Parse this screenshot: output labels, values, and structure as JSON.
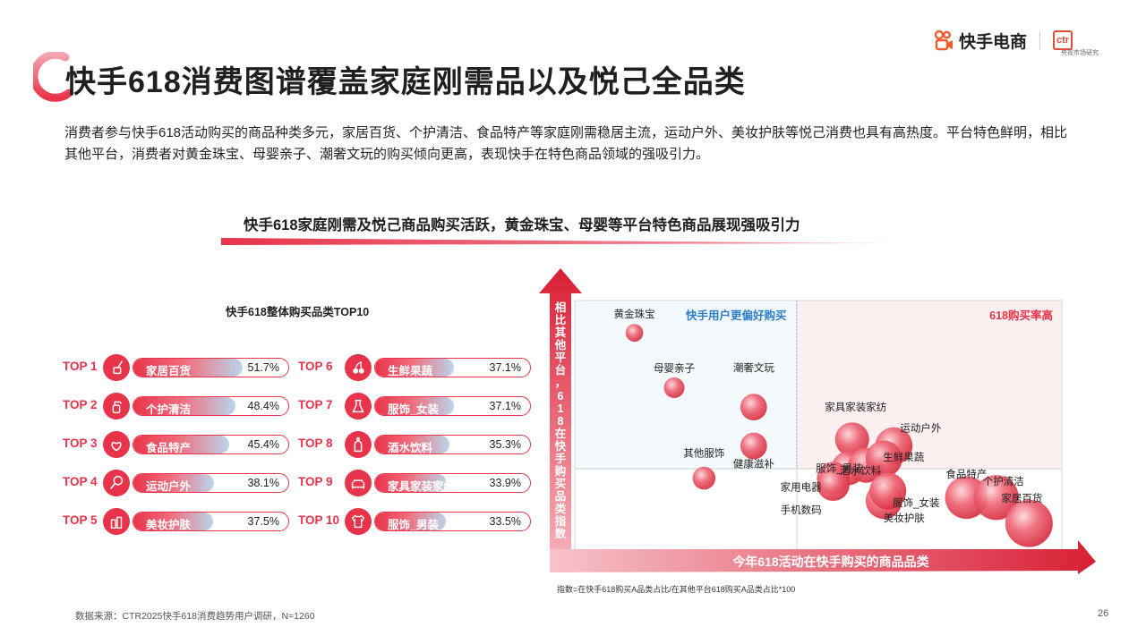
{
  "header": {
    "title": "快手618消费图谱覆盖家庭刚需品以及悦己全品类",
    "logo_text": "快手电商",
    "ctr_logo": "ctr",
    "ctr_caption": "央视市场研究"
  },
  "intro": "消费者参与快手618活动购买的商品种类多元，家居百货、个护清洁、食品特产等家庭刚需稳居主流，运动户外、美妆护肤等悦己消费也具有高热度。平台特色鲜明，相比其他平台，消费者对黄金珠宝、母婴亲子、潮奢文玩的购买倾向更高，表现快手在特色商品领域的强吸引力。",
  "section_title": "快手618家庭刚需及悦己商品购买活跃，黄金珠宝、母婴等平台特色商品展现强吸引力",
  "colors": {
    "accent": "#e8344a",
    "accent_dark": "#c8102e",
    "light_blue": "#b9d6ec"
  },
  "top10": {
    "title": "快手618整体购买品类TOP10",
    "items": [
      {
        "rank": "TOP 1",
        "label": "家居百货",
        "value": "51.7%",
        "icon": "broom-bucket-icon",
        "pct": 51.7
      },
      {
        "rank": "TOP 2",
        "label": "个护清洁",
        "value": "48.4%",
        "icon": "spray-bottle-icon",
        "pct": 48.4
      },
      {
        "rank": "TOP 3",
        "label": "食品特产",
        "value": "45.4%",
        "icon": "pretzel-icon",
        "pct": 45.4
      },
      {
        "rank": "TOP 4",
        "label": "运动户外",
        "value": "38.1%",
        "icon": "racket-icon",
        "pct": 38.1
      },
      {
        "rank": "TOP 5",
        "label": "美妆护肤",
        "value": "37.5%",
        "icon": "cosmetics-icon",
        "pct": 37.5
      },
      {
        "rank": "TOP 6",
        "label": "生鲜果蔬",
        "value": "37.1%",
        "icon": "cherry-icon",
        "pct": 37.1
      },
      {
        "rank": "TOP 7",
        "label": "服饰_女装",
        "value": "37.1%",
        "icon": "dress-icon",
        "pct": 37.1
      },
      {
        "rank": "TOP 8",
        "label": "酒水饮料",
        "value": "35.3%",
        "icon": "bottle-icon",
        "pct": 35.3
      },
      {
        "rank": "TOP 9",
        "label": "家具家装家纺",
        "value": "33.9%",
        "icon": "sofa-icon",
        "pct": 33.9
      },
      {
        "rank": "TOP 10",
        "label": "服饰_男装",
        "value": "33.5%",
        "icon": "shirt-icon",
        "pct": 33.5
      }
    ]
  },
  "chart_data": {
    "type": "scatter",
    "xlabel": "今年618活动在快手购买的商品品类",
    "ylabel": "相比其他平台，618在快手购买品类指数",
    "quadrant_labels": {
      "top_left": "快手用户更偏好购买",
      "top_right": "618购买率高"
    },
    "points": [
      {
        "name": "黄金珠宝",
        "x": 12,
        "y": 145
      },
      {
        "name": "母婴亲子",
        "x": 16,
        "y": 128
      },
      {
        "name": "潮奢文玩",
        "x": 24,
        "y": 122
      },
      {
        "name": "其他服饰",
        "x": 19,
        "y": 100
      },
      {
        "name": "健康滋补",
        "x": 24,
        "y": 110
      },
      {
        "name": "家具家装家纺",
        "x": 33.9,
        "y": 112
      },
      {
        "name": "服饰_男装",
        "x": 33.5,
        "y": 103
      },
      {
        "name": "家用电器",
        "x": 32,
        "y": 100
      },
      {
        "name": "手机数码",
        "x": 32,
        "y": 98
      },
      {
        "name": "酒水饮料",
        "x": 35.3,
        "y": 104
      },
      {
        "name": "运动户外",
        "x": 38.1,
        "y": 110
      },
      {
        "name": "生鲜果蔬",
        "x": 37.1,
        "y": 106
      },
      {
        "name": "服饰_女装",
        "x": 37.1,
        "y": 93
      },
      {
        "name": "美妆护肤",
        "x": 37.5,
        "y": 96
      },
      {
        "name": "食品特产",
        "x": 45.4,
        "y": 94
      },
      {
        "name": "个护清洁",
        "x": 48.4,
        "y": 94
      },
      {
        "name": "家居百货",
        "x": 51.7,
        "y": 86
      }
    ]
  },
  "footnote": "指数=在快手618购买A品类占比/在其他平台618购买A品类占比*100",
  "source": "数据来源：CTR2025快手618消费趋势用户调研，N=1260",
  "page_number": "26"
}
